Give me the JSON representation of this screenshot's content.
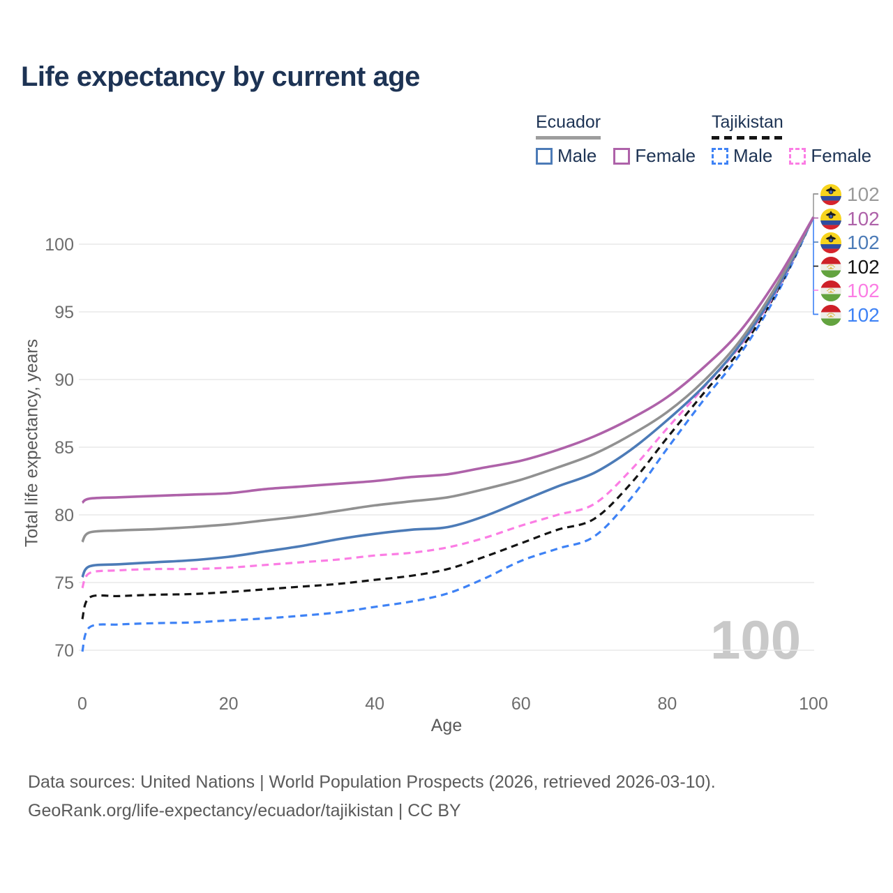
{
  "title": "Life expectancy by current age",
  "legend": {
    "groups": [
      {
        "country": "Ecuador",
        "line_style": "solid",
        "entries": [
          {
            "label": "Male",
            "color": "#4c7bb7"
          },
          {
            "label": "Female",
            "color": "#ae62a9"
          }
        ]
      },
      {
        "country": "Tajikistan",
        "line_style": "dashed",
        "entries": [
          {
            "label": "Male",
            "color": "#3e82f5"
          },
          {
            "label": "Female",
            "color": "#fb7de4"
          }
        ]
      }
    ]
  },
  "chart_data": {
    "type": "line",
    "x_label": "Age",
    "y_label": "Total life expectancy, years",
    "x_ticks": [
      0,
      20,
      40,
      60,
      80,
      100
    ],
    "y_ticks": [
      70,
      75,
      80,
      85,
      90,
      95,
      100
    ],
    "x_range": [
      0,
      100
    ],
    "y_range": [
      68,
      103
    ],
    "grid": "horizontal",
    "x": [
      0,
      1,
      5,
      10,
      15,
      20,
      25,
      30,
      35,
      40,
      45,
      50,
      55,
      60,
      65,
      70,
      75,
      80,
      85,
      90,
      95,
      100
    ],
    "series": [
      {
        "name": "Ecuador",
        "country": "ecuador",
        "color": "#919191",
        "dashed": false,
        "end_label": "102",
        "values": [
          78.0,
          78.7,
          78.85,
          78.95,
          79.1,
          79.3,
          79.6,
          79.9,
          80.3,
          80.7,
          81.0,
          81.3,
          81.9,
          82.6,
          83.5,
          84.5,
          85.9,
          87.6,
          89.9,
          92.9,
          97.0,
          102
        ]
      },
      {
        "name": "Ecuador Female",
        "country": "ecuador",
        "color": "#ae62a9",
        "dashed": false,
        "end_label": "102",
        "values": [
          80.9,
          81.2,
          81.3,
          81.4,
          81.5,
          81.6,
          81.9,
          82.1,
          82.3,
          82.5,
          82.8,
          83.0,
          83.5,
          84.0,
          84.8,
          85.8,
          87.1,
          88.7,
          90.9,
          93.6,
          97.4,
          102
        ]
      },
      {
        "name": "Ecuador Male",
        "country": "ecuador",
        "color": "#4c7bb7",
        "dashed": false,
        "end_label": "102",
        "values": [
          75.4,
          76.2,
          76.35,
          76.5,
          76.65,
          76.9,
          77.3,
          77.7,
          78.2,
          78.6,
          78.9,
          79.1,
          79.9,
          81.0,
          82.1,
          83.1,
          84.8,
          87.0,
          89.5,
          92.6,
          96.7,
          102
        ]
      },
      {
        "name": "Tajikistan",
        "country": "tajikistan",
        "color": "#141414",
        "dashed": true,
        "end_label": "102",
        "values": [
          72.3,
          73.9,
          74.0,
          74.1,
          74.15,
          74.3,
          74.5,
          74.7,
          74.9,
          75.2,
          75.5,
          76.0,
          76.9,
          77.9,
          78.9,
          79.7,
          82.3,
          85.7,
          89.0,
          92.2,
          96.5,
          102
        ]
      },
      {
        "name": "Tajikistan Female",
        "country": "tajikistan",
        "color": "#fb7de4",
        "dashed": true,
        "end_label": "102",
        "values": [
          74.6,
          75.7,
          75.9,
          76.0,
          76.0,
          76.1,
          76.3,
          76.5,
          76.7,
          77.0,
          77.2,
          77.6,
          78.3,
          79.2,
          80.0,
          80.8,
          83.3,
          86.4,
          89.4,
          92.5,
          96.6,
          102
        ]
      },
      {
        "name": "Tajikistan Male",
        "country": "tajikistan",
        "color": "#3e82f5",
        "dashed": true,
        "end_label": "102",
        "values": [
          69.9,
          71.7,
          71.9,
          72.0,
          72.05,
          72.2,
          72.35,
          72.55,
          72.8,
          73.2,
          73.6,
          74.2,
          75.3,
          76.6,
          77.5,
          78.4,
          81.2,
          84.9,
          88.5,
          91.9,
          96.3,
          102
        ]
      }
    ]
  },
  "watermark": "100",
  "footer": {
    "line1": "Data sources: United Nations | World Population Prospects (2026, retrieved 2026-03-10).",
    "line2": "GeoRank.org/life-expectancy/ecuador/tajikistan | CC BY"
  }
}
